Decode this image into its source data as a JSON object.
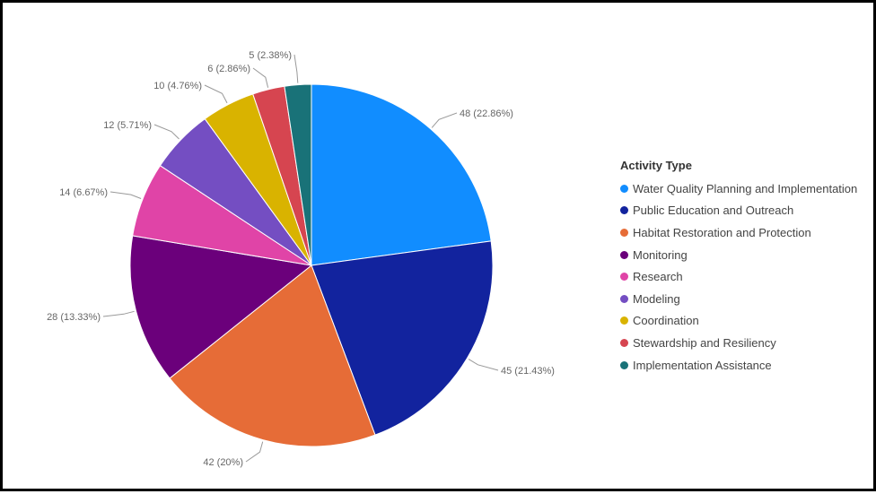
{
  "chart_data": {
    "type": "pie",
    "legend_title": "Activity Type",
    "legend_position": "right",
    "slices": [
      {
        "name": "Water Quality Planning and Implementation",
        "value": 48,
        "label": "48 (22.86%)",
        "color": "#118DFF"
      },
      {
        "name": "Public Education and Outreach",
        "value": 45,
        "label": "45 (21.43%)",
        "color": "#12239E"
      },
      {
        "name": "Habitat Restoration and Protection",
        "value": 42,
        "label": "42 (20%)",
        "color": "#E66C37"
      },
      {
        "name": "Monitoring",
        "value": 28,
        "label": "28 (13.33%)",
        "color": "#6B007B"
      },
      {
        "name": "Research",
        "value": 14,
        "label": "14 (6.67%)",
        "color": "#E044A7"
      },
      {
        "name": "Modeling",
        "value": 12,
        "label": "12 (5.71%)",
        "color": "#744EC2"
      },
      {
        "name": "Coordination",
        "value": 10,
        "label": "10 (4.76%)",
        "color": "#D9B300"
      },
      {
        "name": "Stewardship and Resiliency",
        "value": 6,
        "label": "6 (2.86%)",
        "color": "#D64550"
      },
      {
        "name": "Implementation Assistance",
        "value": 5,
        "label": "5 (2.38%)",
        "color": "#197278"
      }
    ]
  }
}
